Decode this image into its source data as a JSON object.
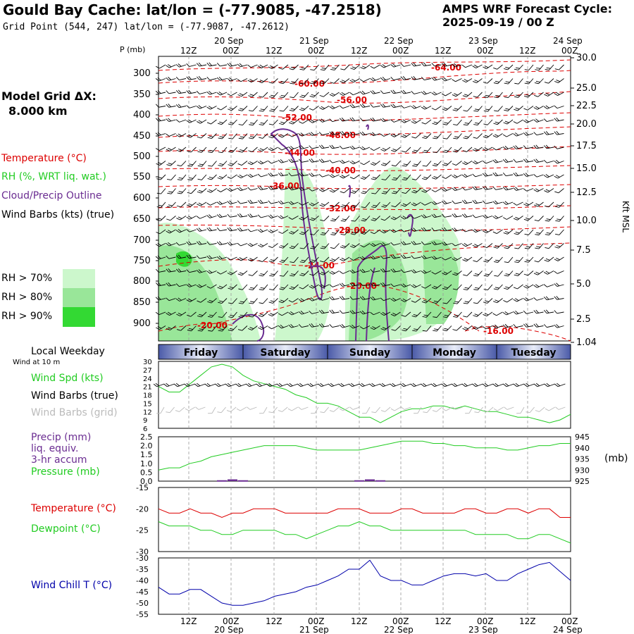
{
  "header": {
    "title": "Gould Bay Cache:  lat/lon = (-77.9085, -47.2518)",
    "subtitle": "Grid Point (544, 247) lat/lon = (-77.9087, -47.2612)",
    "cycle_line1": "AMPS WRF Forecast Cycle:",
    "cycle_line2": "2025-09-19 / 00  Z"
  },
  "legend": {
    "model_grid_line1": "Model Grid ΔX:",
    "model_grid_line2": "8.000 km",
    "temperature": "Temperature (°C)",
    "rh": "RH (%, WRT liq. wat.)",
    "cloud": "Cloud/Precip Outline",
    "wind": "Wind Barbs (kts) (true)",
    "rh_levels": [
      "RH > 70%",
      "RH > 80%",
      "RH > 90%"
    ],
    "rh_colors": [
      "#ccf7cc",
      "#99e699",
      "#33d933"
    ]
  },
  "colors": {
    "temperature": "#dd0000",
    "dewpoint": "#22cc22",
    "rh": "#22cc22",
    "cloud": "#6a2c91",
    "wind": "#000000",
    "windchill": "#0000aa",
    "grid_barbs": "#bbbbbb",
    "precip": "#6a2c91",
    "pressure": "#22cc22"
  },
  "time_axis": {
    "hour_labels": [
      "12Z",
      "00Z",
      "12Z",
      "00Z",
      "12Z",
      "00Z",
      "12Z",
      "00Z",
      "12Z",
      "00Z"
    ],
    "date_labels": [
      "20 Sep",
      "21 Sep",
      "22 Sep",
      "23 Sep",
      "24 Sep"
    ],
    "weekdays": [
      "Friday",
      "Saturday",
      "Sunday",
      "Monday",
      "Tuesday"
    ],
    "local_weekday_label": "Local Weekday"
  },
  "cross_section": {
    "p_label": "P (mb)",
    "p_ticks": [
      "300",
      "350",
      "400",
      "450",
      "500",
      "550",
      "600",
      "650",
      "700",
      "750",
      "800",
      "850",
      "900"
    ],
    "kft_label": "Kft MSL",
    "kft_ticks": [
      "30.0",
      "25.0",
      "22.5",
      "20.0",
      "17.5",
      "15.0",
      "12.5",
      "10.0",
      "7.5",
      "5.0",
      "2.5",
      "1.04"
    ],
    "temp_labels": [
      "-64.00",
      "-60.00",
      "-56.00",
      "-52.00",
      "-48.00",
      "-44.00",
      "-40.00",
      "-36.00",
      "-32.00",
      "-28.00",
      "-24.00",
      "-20.00",
      "-20.00",
      "-16.00"
    ]
  },
  "panel_wind": {
    "label_sub": "Wind at 10 m",
    "spd_label": "Wind Spd (kts)",
    "barbs_true_label": "Wind Barbs (true)",
    "barbs_grid_label": "Wind Barbs (grid)",
    "y_ticks": [
      "30",
      "27",
      "24",
      "21",
      "18",
      "15",
      "12",
      "9",
      "6"
    ]
  },
  "panel_precip": {
    "precip_label_lines": [
      "Precip (mm)",
      "liq. equiv.",
      "3-hr accum"
    ],
    "pressure_label": "Pressure (mb)",
    "left_ticks": [
      "2.5",
      "2.0",
      "1.5",
      "1.0",
      "0.5",
      "0.0"
    ],
    "right_ticks": [
      "945",
      "940",
      "935",
      "930",
      "925"
    ],
    "right_unit": "(mb)"
  },
  "panel_temp": {
    "temp_label": "Temperature (°C)",
    "dew_label": "Dewpoint (°C)",
    "y_ticks": [
      "-15",
      "-20",
      "-25",
      "-30"
    ]
  },
  "panel_windchill": {
    "label": "Wind Chill T (°C)",
    "y_ticks": [
      "-30",
      "-35",
      "-40",
      "-45",
      "-50",
      "-55"
    ]
  },
  "chart_data": [
    {
      "type": "line",
      "title": "Wind Spd (kts)",
      "x": [
        0,
        3,
        6,
        9,
        12,
        15,
        18,
        21,
        24,
        27,
        30,
        33,
        36,
        39,
        42,
        45,
        48,
        51,
        54,
        57,
        60,
        63,
        66,
        69,
        72,
        75,
        78,
        81,
        84,
        87,
        90,
        93,
        96,
        99,
        102,
        105,
        108,
        111,
        114,
        117
      ],
      "series": [
        {
          "name": "Wind Spd (kts)",
          "values": [
            21,
            19,
            19,
            22,
            25,
            28,
            29,
            28,
            25,
            23,
            22,
            21,
            20,
            18,
            17,
            15,
            15,
            14,
            12,
            10,
            10,
            8,
            10,
            12,
            13,
            13,
            14,
            14,
            13,
            14,
            13,
            12,
            12,
            11,
            10,
            10,
            9,
            8,
            9,
            11
          ]
        }
      ],
      "ylim": [
        6,
        30
      ]
    },
    {
      "type": "line",
      "title": "Pressure (mb)",
      "x": [
        0,
        3,
        6,
        9,
        12,
        15,
        18,
        21,
        24,
        27,
        30,
        33,
        36,
        39,
        42,
        45,
        48,
        51,
        54,
        57,
        60,
        63,
        66,
        69,
        72,
        75,
        78,
        81,
        84,
        87,
        90,
        93,
        96,
        99,
        102,
        105,
        108,
        111,
        114,
        117
      ],
      "series": [
        {
          "name": "Pressure (mb)",
          "values": [
            930,
            931,
            931,
            933,
            934,
            936,
            937,
            938,
            939,
            940,
            941,
            941,
            941,
            941,
            940,
            939,
            939,
            939,
            939,
            939,
            940,
            941,
            942,
            943,
            943,
            943,
            942,
            942,
            941,
            941,
            940,
            940,
            940,
            939,
            939,
            940,
            941,
            941,
            942,
            942
          ]
        }
      ],
      "ylim": [
        925,
        945
      ]
    },
    {
      "type": "bar",
      "title": "Precip (mm) 3-hr accum",
      "x": [
        18,
        21,
        24,
        57,
        60,
        63
      ],
      "values": [
        0.05,
        0.1,
        0.05,
        0.05,
        0.1,
        0.05
      ],
      "ylim": [
        0,
        2.5
      ]
    },
    {
      "type": "line",
      "title": "Temperature and Dewpoint (°C)",
      "x": [
        0,
        3,
        6,
        9,
        12,
        15,
        18,
        21,
        24,
        27,
        30,
        33,
        36,
        39,
        42,
        45,
        48,
        51,
        54,
        57,
        60,
        63,
        66,
        69,
        72,
        75,
        78,
        81,
        84,
        87,
        90,
        93,
        96,
        99,
        102,
        105,
        108,
        111,
        114,
        117
      ],
      "series": [
        {
          "name": "Temperature (°C)",
          "values": [
            -20,
            -21,
            -21,
            -20,
            -21,
            -21,
            -22,
            -21,
            -21,
            -20,
            -20,
            -20,
            -21,
            -21,
            -21,
            -21,
            -21,
            -20,
            -20,
            -20,
            -21,
            -21,
            -21,
            -20,
            -20,
            -21,
            -21,
            -21,
            -21,
            -20,
            -20,
            -21,
            -21,
            -20,
            -20,
            -21,
            -20,
            -20,
            -22,
            -22
          ]
        },
        {
          "name": "Dewpoint (°C)",
          "values": [
            -23,
            -24,
            -24,
            -24,
            -25,
            -25,
            -26,
            -26,
            -25,
            -25,
            -25,
            -25,
            -26,
            -26,
            -27,
            -26,
            -25,
            -24,
            -24,
            -23,
            -24,
            -24,
            -25,
            -25,
            -25,
            -25,
            -25,
            -25,
            -25,
            -25,
            -26,
            -26,
            -26,
            -26,
            -27,
            -27,
            -26,
            -26,
            -27,
            -28
          ]
        }
      ],
      "ylim": [
        -30,
        -15
      ]
    },
    {
      "type": "line",
      "title": "Wind Chill T (°C)",
      "x": [
        0,
        3,
        6,
        9,
        12,
        15,
        18,
        21,
        24,
        27,
        30,
        33,
        36,
        39,
        42,
        45,
        48,
        51,
        54,
        57,
        60,
        63,
        66,
        69,
        72,
        75,
        78,
        81,
        84,
        87,
        90,
        93,
        96,
        99,
        102,
        105,
        108,
        111,
        114,
        117
      ],
      "series": [
        {
          "name": "Wind Chill T (°C)",
          "values": [
            -43,
            -46,
            -46,
            -44,
            -44,
            -47,
            -50,
            -51,
            -51,
            -50,
            -49,
            -47,
            -46,
            -45,
            -43,
            -42,
            -40,
            -38,
            -35,
            -35,
            -31,
            -38,
            -40,
            -40,
            -42,
            -42,
            -40,
            -38,
            -37,
            -37,
            -38,
            -37,
            -40,
            -40,
            -37,
            -35,
            -33,
            -32,
            -36,
            -40
          ]
        }
      ],
      "ylim": [
        -55,
        -30
      ]
    }
  ]
}
